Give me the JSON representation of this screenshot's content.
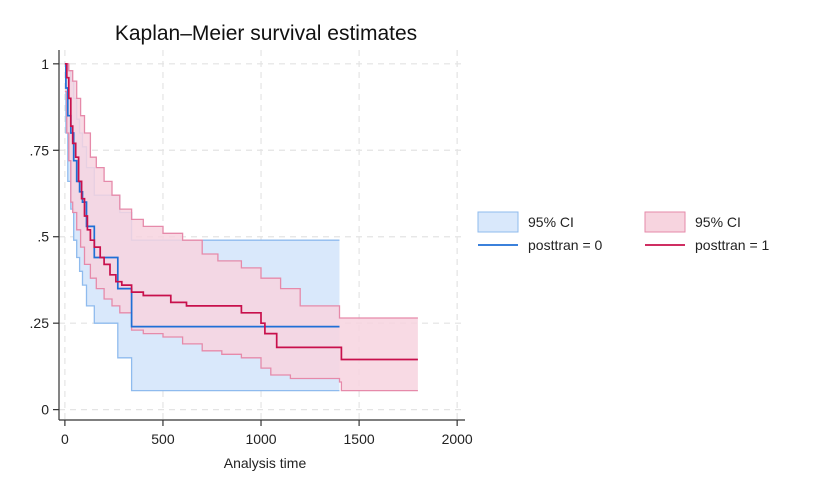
{
  "chart_data": {
    "type": "line",
    "title": "Kaplan–Meier survival estimates",
    "xlabel": "Analysis time",
    "ylabel": "",
    "xlim": [
      -30,
      2040
    ],
    "ylim": [
      -0.03,
      1.04
    ],
    "x_ticks": [
      0,
      500,
      1000,
      1500,
      2000
    ],
    "x_tick_labels": [
      "0",
      "500",
      "1000",
      "1500",
      "2000"
    ],
    "y_ticks": [
      0,
      0.25,
      0.5,
      0.75,
      1
    ],
    "y_tick_labels": [
      "0",
      ".25",
      ".5",
      ".75",
      "1"
    ],
    "grid": true,
    "legend_position": "right",
    "series": [
      {
        "name": "posttran = 0",
        "legend_label": "posttran = 0",
        "ci_legend_label": "95% CI",
        "line_color": "#1f6fd6",
        "ci_fill": "#d9e8fb",
        "ci_line": "#8fbbee",
        "points": [
          [
            0,
            1.0
          ],
          [
            5,
            0.93
          ],
          [
            15,
            0.85
          ],
          [
            30,
            0.8
          ],
          [
            45,
            0.72
          ],
          [
            60,
            0.66
          ],
          [
            75,
            0.63
          ],
          [
            90,
            0.6
          ],
          [
            110,
            0.53
          ],
          [
            150,
            0.44
          ],
          [
            220,
            0.44
          ],
          [
            270,
            0.35
          ],
          [
            300,
            0.35
          ],
          [
            340,
            0.24
          ],
          [
            1400,
            0.24
          ]
        ],
        "ci_upper": [
          [
            0,
            1.0
          ],
          [
            5,
            1.0
          ],
          [
            15,
            0.98
          ],
          [
            30,
            0.95
          ],
          [
            45,
            0.9
          ],
          [
            60,
            0.84
          ],
          [
            75,
            0.8
          ],
          [
            90,
            0.76
          ],
          [
            110,
            0.7
          ],
          [
            150,
            0.62
          ],
          [
            270,
            0.62
          ],
          [
            280,
            0.57
          ],
          [
            340,
            0.49
          ],
          [
            1400,
            0.49
          ]
        ],
        "ci_lower": [
          [
            0,
            1.0
          ],
          [
            5,
            0.8
          ],
          [
            15,
            0.66
          ],
          [
            30,
            0.58
          ],
          [
            45,
            0.49
          ],
          [
            60,
            0.44
          ],
          [
            75,
            0.4
          ],
          [
            90,
            0.36
          ],
          [
            110,
            0.3
          ],
          [
            150,
            0.25
          ],
          [
            260,
            0.25
          ],
          [
            270,
            0.15
          ],
          [
            340,
            0.055
          ],
          [
            1400,
            0.055
          ]
        ]
      },
      {
        "name": "posttran = 1",
        "legend_label": "posttran = 1",
        "ci_legend_label": "95% CI",
        "line_color": "#c8104c",
        "ci_fill": "#f7d4df",
        "ci_line": "#e68aaa",
        "points": [
          [
            0,
            1.0
          ],
          [
            10,
            0.96
          ],
          [
            20,
            0.9
          ],
          [
            30,
            0.82
          ],
          [
            40,
            0.77
          ],
          [
            55,
            0.73
          ],
          [
            70,
            0.66
          ],
          [
            85,
            0.61
          ],
          [
            100,
            0.56
          ],
          [
            115,
            0.52
          ],
          [
            130,
            0.49
          ],
          [
            150,
            0.47
          ],
          [
            180,
            0.44
          ],
          [
            200,
            0.42
          ],
          [
            230,
            0.39
          ],
          [
            260,
            0.37
          ],
          [
            290,
            0.36
          ],
          [
            340,
            0.34
          ],
          [
            400,
            0.33
          ],
          [
            500,
            0.33
          ],
          [
            540,
            0.31
          ],
          [
            620,
            0.3
          ],
          [
            700,
            0.3
          ],
          [
            900,
            0.28
          ],
          [
            1000,
            0.25
          ],
          [
            1020,
            0.22
          ],
          [
            1080,
            0.18
          ],
          [
            1200,
            0.18
          ],
          [
            1400,
            0.18
          ],
          [
            1410,
            0.145
          ],
          [
            1800,
            0.145
          ]
        ],
        "ci_upper": [
          [
            0,
            1.0
          ],
          [
            10,
            1.0
          ],
          [
            20,
            0.98
          ],
          [
            40,
            0.95
          ],
          [
            60,
            0.9
          ],
          [
            80,
            0.85
          ],
          [
            100,
            0.8
          ],
          [
            130,
            0.73
          ],
          [
            160,
            0.7
          ],
          [
            200,
            0.66
          ],
          [
            240,
            0.62
          ],
          [
            280,
            0.58
          ],
          [
            340,
            0.55
          ],
          [
            400,
            0.53
          ],
          [
            500,
            0.51
          ],
          [
            600,
            0.49
          ],
          [
            700,
            0.45
          ],
          [
            780,
            0.43
          ],
          [
            900,
            0.41
          ],
          [
            1000,
            0.38
          ],
          [
            1100,
            0.35
          ],
          [
            1200,
            0.3
          ],
          [
            1300,
            0.3
          ],
          [
            1400,
            0.265
          ],
          [
            1800,
            0.265
          ]
        ],
        "ci_lower": [
          [
            0,
            0.92
          ],
          [
            10,
            0.8
          ],
          [
            20,
            0.72
          ],
          [
            30,
            0.6
          ],
          [
            40,
            0.57
          ],
          [
            60,
            0.52
          ],
          [
            80,
            0.47
          ],
          [
            100,
            0.42
          ],
          [
            130,
            0.38
          ],
          [
            160,
            0.35
          ],
          [
            200,
            0.32
          ],
          [
            240,
            0.3
          ],
          [
            280,
            0.28
          ],
          [
            340,
            0.23
          ],
          [
            400,
            0.22
          ],
          [
            500,
            0.21
          ],
          [
            600,
            0.19
          ],
          [
            700,
            0.17
          ],
          [
            800,
            0.16
          ],
          [
            900,
            0.15
          ],
          [
            1000,
            0.12
          ],
          [
            1050,
            0.1
          ],
          [
            1150,
            0.09
          ],
          [
            1400,
            0.08
          ],
          [
            1410,
            0.055
          ],
          [
            1800,
            0.055
          ]
        ]
      }
    ]
  }
}
